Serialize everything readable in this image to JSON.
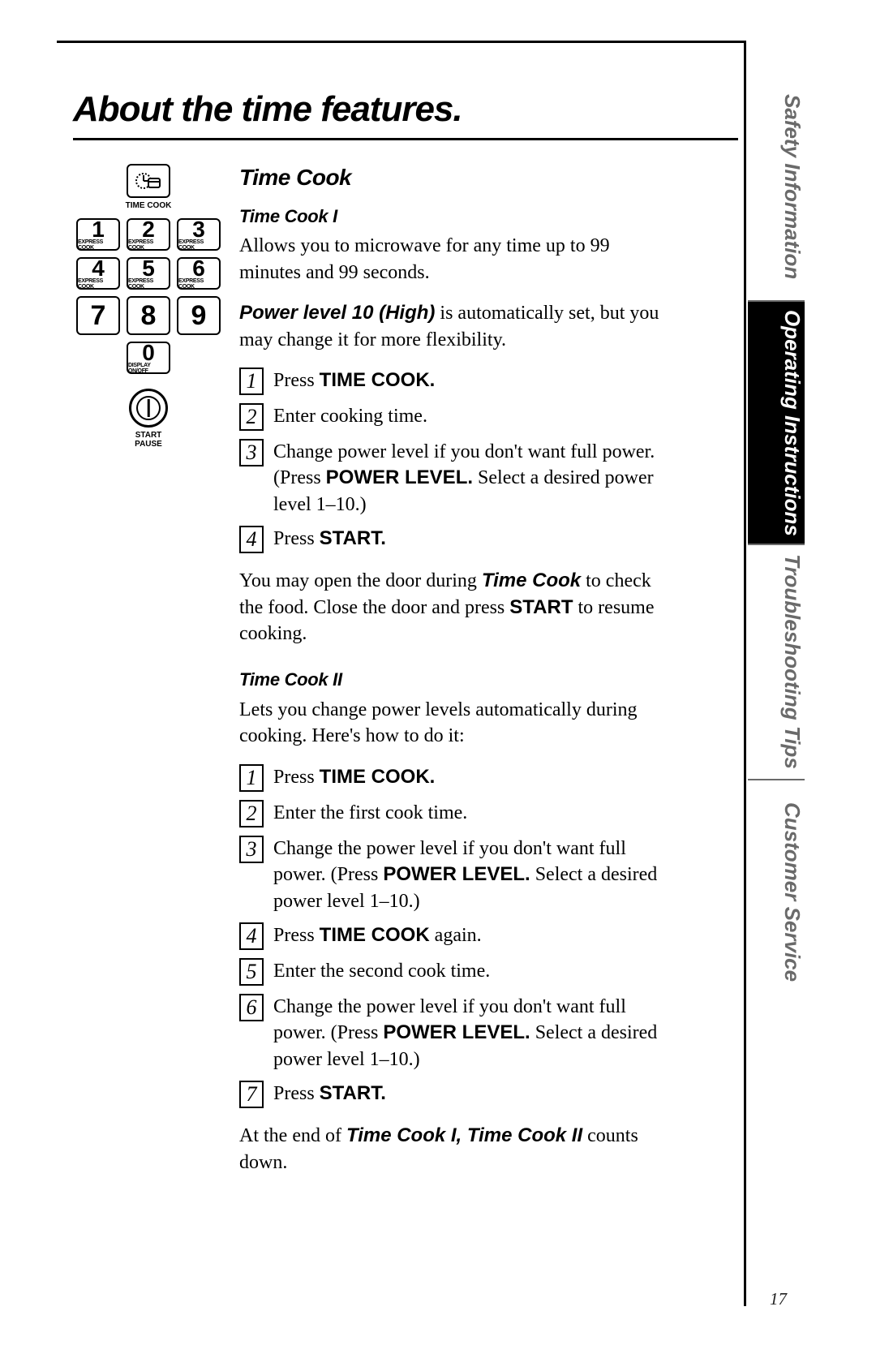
{
  "title": "About the time features.",
  "page_number": "17",
  "side_tabs": [
    {
      "label": "Safety Information",
      "active": false
    },
    {
      "label": "Operating Instructions",
      "active": true
    },
    {
      "label": "Troubleshooting Tips",
      "active": false
    },
    {
      "label": "Customer Service",
      "active": false
    }
  ],
  "side_tab_heights": [
    280,
    300,
    290,
    280
  ],
  "keypad": {
    "time_cook_label": "TIME COOK",
    "express_cook_label": "EXPRESS COOK",
    "display_label": "DISPLAY ON/OFF",
    "start_label_1": "START",
    "start_label_2": "PAUSE",
    "digits": [
      "1",
      "2",
      "3",
      "4",
      "5",
      "6",
      "7",
      "8",
      "9",
      "0"
    ]
  },
  "content": {
    "section_heading": "Time Cook",
    "tc1": {
      "heading": "Time Cook I",
      "intro": "Allows you to microwave for any time up to 99 minutes and 99 seconds.",
      "power_prefix": "Power level 10 (High)",
      "power_rest": " is automatically set, but you may change it for more flexibility.",
      "steps": [
        {
          "n": "1",
          "pre": "Press ",
          "bold": "TIME COOK."
        },
        {
          "n": "2",
          "text": "Enter cooking time."
        },
        {
          "n": "3",
          "pre": "Change power level if you don't want full power. (Press ",
          "bold": "POWER LEVEL.",
          "post": " Select a desired power level 1–10.)"
        },
        {
          "n": "4",
          "pre": "Press ",
          "bold": "START."
        }
      ],
      "note_pre": "You may open the door during ",
      "note_bold1": "Time Cook",
      "note_mid": " to check the food. Close the door and press ",
      "note_bold2": "START",
      "note_end": " to resume cooking."
    },
    "tc2": {
      "heading": "Time Cook II",
      "intro": "Lets you change power levels automatically during cooking. Here's how to do it:",
      "steps": [
        {
          "n": "1",
          "pre": "Press ",
          "bold": "TIME COOK."
        },
        {
          "n": "2",
          "text": "Enter the first cook time."
        },
        {
          "n": "3",
          "pre": "Change the power level if you don't want full power. (Press ",
          "bold": "POWER LEVEL.",
          "post": " Select a desired power level 1–10.)"
        },
        {
          "n": "4",
          "pre": "Press ",
          "bold": "TIME COOK",
          "post": " again."
        },
        {
          "n": "5",
          "text": "Enter the second cook time."
        },
        {
          "n": "6",
          "pre": "Change the power level if you don't want full power. (Press ",
          "bold": "POWER LEVEL.",
          "post": " Select a desired power level 1–10.)"
        },
        {
          "n": "7",
          "pre": "Press ",
          "bold": "START."
        }
      ],
      "note_pre": "At the end of ",
      "note_bold": "Time Cook I, Time Cook II",
      "note_end": " counts down."
    }
  },
  "colors": {
    "text": "#000000",
    "tab_inactive": "#6a6a6a",
    "tab_active_bg": "#000000",
    "tab_active_fg": "#ffffff",
    "background": "#ffffff"
  }
}
